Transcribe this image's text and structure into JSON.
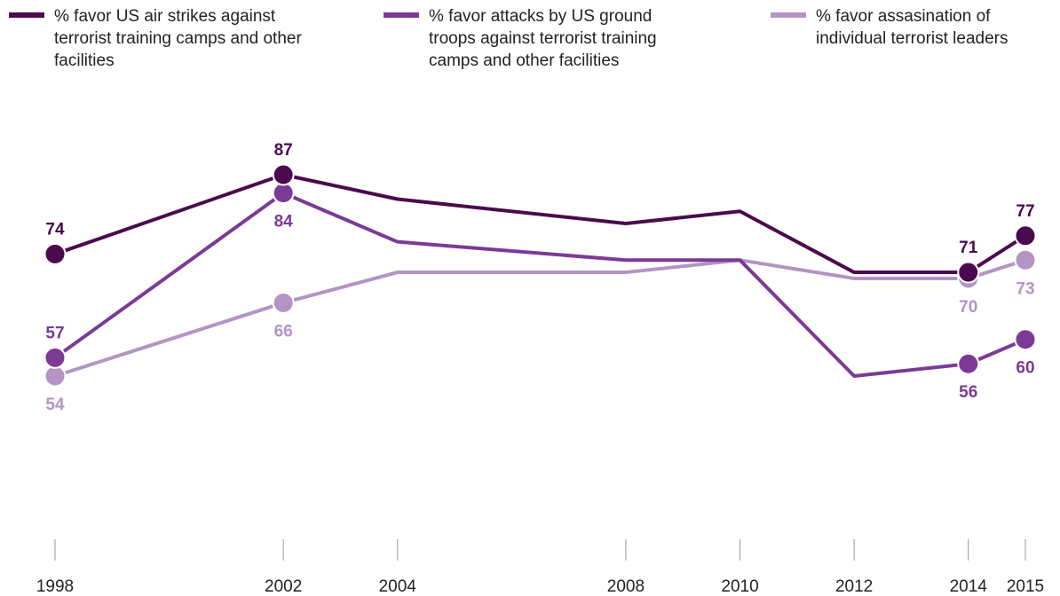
{
  "chart_data": {
    "type": "line",
    "x": [
      "1998",
      "2002",
      "2004",
      "2008",
      "2010",
      "2012",
      "2014",
      "2015"
    ],
    "x_numeric": [
      1998,
      2002,
      2004,
      2008,
      2010,
      2012,
      2014,
      2015
    ],
    "title": "",
    "xlabel": "",
    "ylabel": "",
    "ylim": [
      40,
      95
    ],
    "grid": false,
    "legend_position": "top",
    "series": [
      {
        "name": "% favor US air strikes against terrorist training camps and other facilities",
        "color": "#4a0a4e",
        "values": [
          74,
          87,
          83,
          79,
          81,
          71,
          71,
          77
        ],
        "labeled_points": [
          {
            "x": "1998",
            "label": "74",
            "position": "above"
          },
          {
            "x": "2002",
            "label": "87",
            "position": "above"
          },
          {
            "x": "2014",
            "label": "71",
            "position": "above"
          },
          {
            "x": "2015",
            "label": "77",
            "position": "above"
          }
        ]
      },
      {
        "name": "% favor attacks by US ground troops against terrorist training camps and other facilities",
        "color": "#7b3a96",
        "values": [
          57,
          84,
          76,
          73,
          73,
          54,
          56,
          60
        ],
        "labeled_points": [
          {
            "x": "1998",
            "label": "57",
            "position": "above"
          },
          {
            "x": "2002",
            "label": "84",
            "position": "below"
          },
          {
            "x": "2014",
            "label": "56",
            "position": "below"
          },
          {
            "x": "2015",
            "label": "60",
            "position": "below"
          }
        ]
      },
      {
        "name": "% favor assasination of individual terrorist leaders",
        "color": "#b394c4",
        "values": [
          54,
          66,
          71,
          71,
          73,
          70,
          70,
          73
        ],
        "labeled_points": [
          {
            "x": "1998",
            "label": "54",
            "position": "below"
          },
          {
            "x": "2002",
            "label": "66",
            "position": "below"
          },
          {
            "x": "2014",
            "label": "70",
            "position": "below"
          },
          {
            "x": "2015",
            "label": "73",
            "position": "below"
          }
        ]
      }
    ]
  },
  "legend": {
    "items": [
      {
        "line1": "% favor US air strikes against",
        "line2": "terrorist training camps and other",
        "line3": "facilities"
      },
      {
        "line1": "% favor attacks by US ground",
        "line2": "troops against terrorist training",
        "line3": "camps and other facilities"
      },
      {
        "line1": "% favor assasination of",
        "line2": "individual terrorist leaders",
        "line3": ""
      }
    ]
  }
}
